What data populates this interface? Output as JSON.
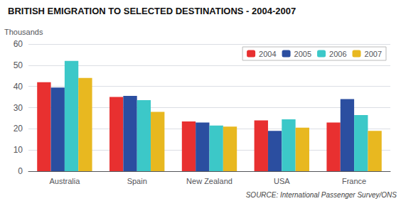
{
  "chart_data": {
    "type": "bar",
    "title": "BRITISH EMIGRATION TO SELECTED DESTINATIONS - 2004-2007",
    "ylabel": "Thousands",
    "source": "SOURCE: International Passenger Survey/ONS",
    "categories": [
      "Australia",
      "Spain",
      "New Zealand",
      "USA",
      "France"
    ],
    "series": [
      {
        "name": "2004",
        "color": "#e83030",
        "values": [
          42,
          35,
          23.5,
          24,
          23
        ]
      },
      {
        "name": "2005",
        "color": "#2b4ea0",
        "values": [
          39.5,
          35.5,
          23,
          19,
          34
        ]
      },
      {
        "name": "2006",
        "color": "#3cc8c8",
        "values": [
          52,
          33.5,
          21.5,
          24.5,
          26.5
        ]
      },
      {
        "name": "2007",
        "color": "#e8b820",
        "values": [
          44,
          28,
          21,
          20.5,
          19
        ]
      }
    ],
    "ylim": [
      0,
      60
    ],
    "yticks": [
      0,
      10,
      20,
      30,
      40,
      50,
      60
    ],
    "grid": true,
    "legend": "upper right"
  }
}
